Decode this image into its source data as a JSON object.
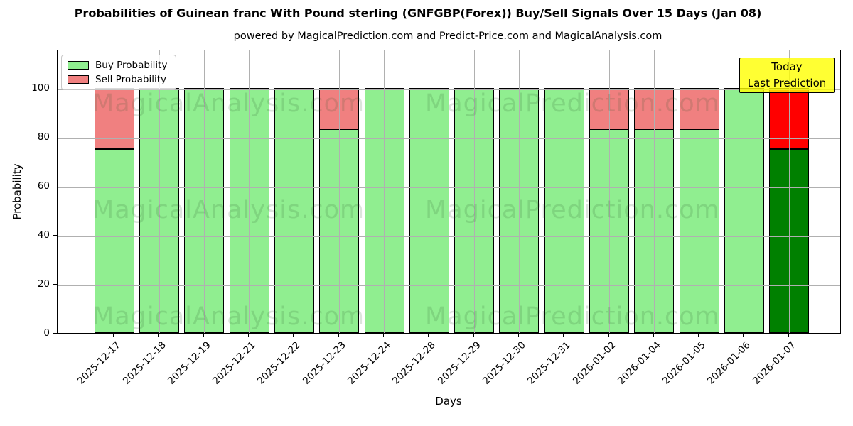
{
  "title": "Probabilities of Guinean franc With Pound sterling (GNFGBP(Forex)) Buy/Sell Signals Over 15 Days (Jan 08)",
  "subtitle": "powered by MagicalPrediction.com and Predict-Price.com and MagicalAnalysis.com",
  "legend": {
    "items": [
      {
        "label": "Buy Probability",
        "color": "#90ee90"
      },
      {
        "label": "Sell Probability",
        "color": "#f08080"
      }
    ]
  },
  "annotation": {
    "line1": "Today",
    "line2": "Last Prediction",
    "bg_color": "#ffff00"
  },
  "watermarks": {
    "left_text": "MagicalAnalysis.com",
    "right_text": "MagicalPrediction.com"
  },
  "chart_data": {
    "type": "bar",
    "stacked": true,
    "title": "Probabilities of Guinean franc With Pound sterling (GNFGBP(Forex)) Buy/Sell Signals Over 15 Days (Jan 08)",
    "subtitle": "powered by MagicalPrediction.com and Predict-Price.com and MagicalAnalysis.com",
    "xlabel": "Days",
    "ylabel": "Probability",
    "ylim": [
      0,
      116
    ],
    "yticks": [
      0,
      20,
      40,
      60,
      80,
      100
    ],
    "dashed_guide_y": 110,
    "grid": true,
    "legend_position": "upper left",
    "categories": [
      "2025-12-17",
      "2025-12-18",
      "2025-12-19",
      "2025-12-21",
      "2025-12-22",
      "2025-12-23",
      "2025-12-24",
      "2025-12-28",
      "2025-12-29",
      "2025-12-30",
      "2025-12-31",
      "2026-01-02",
      "2026-01-04",
      "2026-01-05",
      "2026-01-06",
      "2026-01-07"
    ],
    "series": [
      {
        "name": "Buy Probability",
        "color": "#90ee90",
        "values": [
          75,
          100,
          100,
          100,
          100,
          83.33,
          100,
          100,
          100,
          100,
          100,
          83.33,
          83.33,
          83.33,
          100,
          75
        ]
      },
      {
        "name": "Sell Probability",
        "color": "#f08080",
        "values": [
          25,
          0,
          0,
          0,
          0,
          16.67,
          0,
          0,
          0,
          0,
          0,
          16.67,
          16.67,
          16.67,
          0,
          25
        ]
      }
    ],
    "highlight_last_bar": {
      "buy_color": "#008000",
      "sell_color": "#ff0000"
    }
  }
}
